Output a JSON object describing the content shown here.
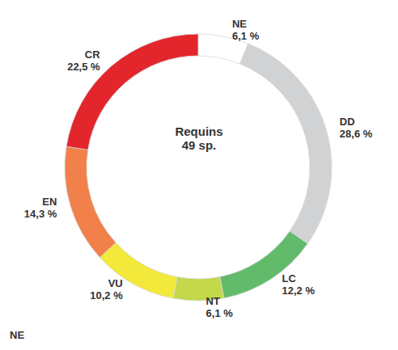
{
  "chart_data": {
    "type": "pie",
    "title": "Requins",
    "subtitle": "49 sp.",
    "categories": [
      "NE",
      "DD",
      "LC",
      "NT",
      "VU",
      "EN",
      "CR"
    ],
    "values": [
      6.1,
      28.6,
      12.2,
      6.1,
      10.2,
      14.3,
      22.5
    ],
    "value_labels": [
      "6,1 %",
      "28,6 %",
      "12,2 %",
      "6,1 %",
      "10,2 %",
      "14,3 %",
      "22,5 %"
    ],
    "colors": [
      "#ffffff",
      "#d1d2d4",
      "#62bb6b",
      "#c3d84a",
      "#f2e93a",
      "#f2804a",
      "#e3262c"
    ],
    "data_labels": true,
    "annotation": "NE"
  }
}
